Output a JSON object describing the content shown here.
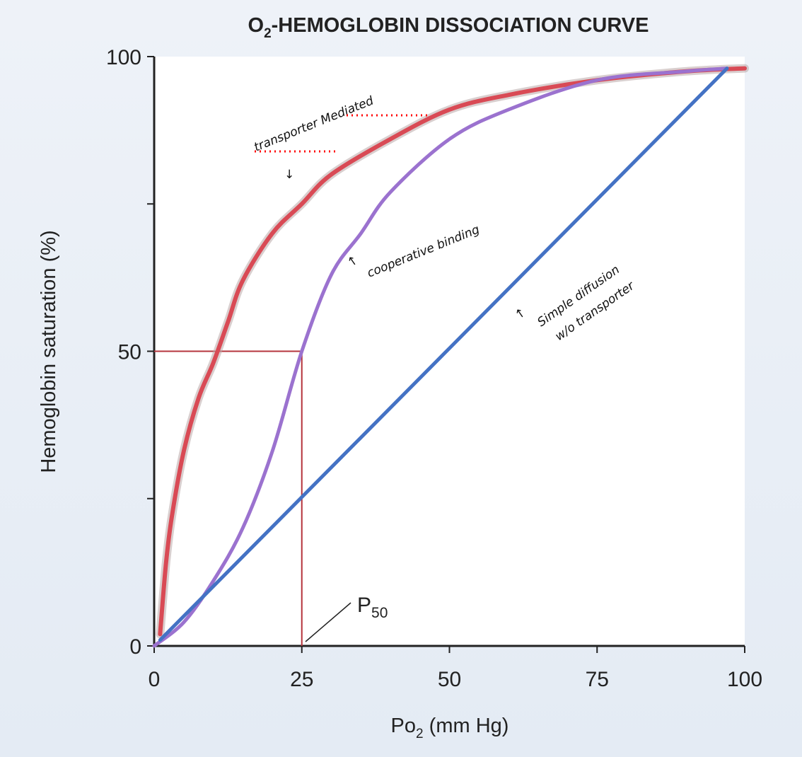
{
  "chart_data": {
    "type": "line",
    "title_main": "O",
    "title_sub": "2",
    "title_rest": "-HEMOGLOBIN DISSOCIATION CURVE",
    "xlabel_main": "Po",
    "xlabel_sub": "2",
    "xlabel_rest": " (mm Hg)",
    "ylabel": "Hemoglobin saturation (%)",
    "xlim": [
      0,
      100
    ],
    "ylim": [
      0,
      100
    ],
    "x_ticks": [
      "0",
      "25",
      "50",
      "75",
      "100"
    ],
    "y_ticks": [
      "0",
      "50",
      "100"
    ],
    "y_minor_ticks": [
      25,
      75
    ],
    "grid": false,
    "series": [
      {
        "color": "#d94a55",
        "points": [
          [
            1,
            2
          ],
          [
            2,
            14
          ],
          [
            3,
            22
          ],
          [
            5,
            33
          ],
          [
            7.5,
            42
          ],
          [
            10,
            48
          ],
          [
            12.5,
            55
          ],
          [
            15,
            62
          ],
          [
            20,
            70
          ],
          [
            25,
            75
          ],
          [
            30,
            80
          ],
          [
            40,
            86
          ],
          [
            50,
            91
          ],
          [
            60,
            93.5
          ],
          [
            75,
            96
          ],
          [
            90,
            97.5
          ],
          [
            100,
            98
          ]
        ]
      },
      {
        "color": "#9b72cf",
        "points": [
          [
            0,
            0
          ],
          [
            5,
            4
          ],
          [
            10,
            11
          ],
          [
            15,
            20
          ],
          [
            20,
            33
          ],
          [
            25,
            50
          ],
          [
            30,
            63
          ],
          [
            35,
            70
          ],
          [
            40,
            77
          ],
          [
            50,
            86
          ],
          [
            60,
            91
          ],
          [
            75,
            96
          ],
          [
            90,
            97.5
          ],
          [
            97,
            98
          ]
        ]
      },
      {
        "color": "#4472c4",
        "points": [
          [
            1,
            1
          ],
          [
            97,
            98
          ]
        ]
      }
    ],
    "p50": {
      "x": 25,
      "y": 50,
      "color": "#b5343c",
      "label_main": "P",
      "label_sub": "50"
    },
    "annotations": {
      "transporter": "transporter Mediated",
      "cooperative": "cooperative binding",
      "simple_1": "Simple diffusion",
      "simple_2": "w/o transporter",
      "arrow_down": "↓",
      "arrow_up": "↑",
      "dots_color": "#ff0000"
    }
  }
}
